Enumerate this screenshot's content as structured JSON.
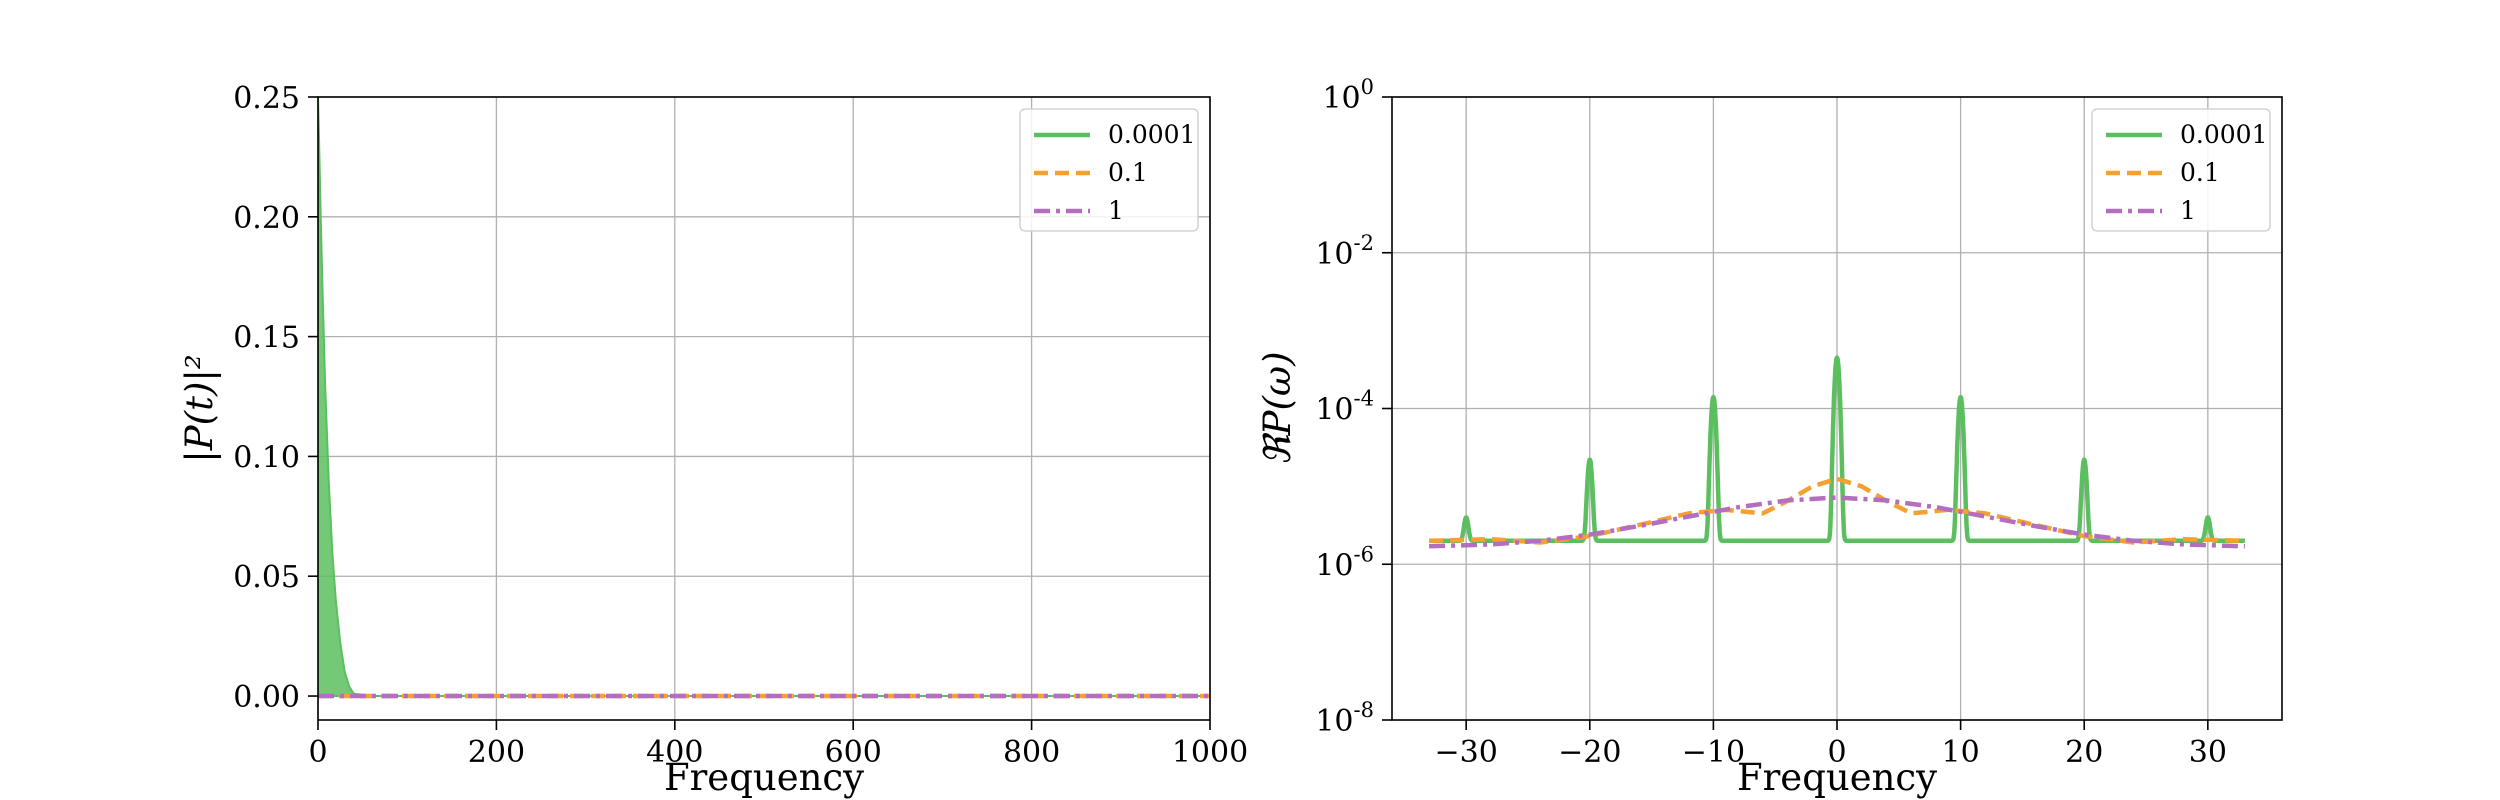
{
  "chart_data": [
    {
      "type": "line",
      "xlabel": "Frequency",
      "ylabel": "|P(t)|²",
      "xlim": [
        0,
        1000
      ],
      "ylim": [
        -0.01,
        0.25
      ],
      "xticks": [
        0,
        200,
        400,
        600,
        800,
        1000
      ],
      "xtick_labels": [
        "0",
        "200",
        "400",
        "600",
        "800",
        "1000"
      ],
      "yticks": [
        0.0,
        0.05,
        0.1,
        0.15,
        0.2,
        0.25
      ],
      "ytick_labels": [
        "0.00",
        "0.05",
        "0.10",
        "0.15",
        "0.20",
        "0.25"
      ],
      "grid": true,
      "legend": "top-right",
      "series": [
        {
          "name": "0.0001",
          "color": "#5cbf5f",
          "dash": "solid",
          "x": [
            0,
            1,
            3,
            5,
            8,
            12,
            16,
            20,
            25,
            30,
            35,
            40,
            60,
            100,
            200,
            400,
            600,
            800,
            1000
          ],
          "y": [
            0.25,
            0.235,
            0.2,
            0.17,
            0.13,
            0.09,
            0.06,
            0.04,
            0.022,
            0.01,
            0.004,
            0.001,
            0.0,
            0.0,
            0.0,
            0.0,
            0.0,
            0.0,
            0.0
          ]
        },
        {
          "name": "0.1",
          "color": "#f5a031",
          "dash": "dashed",
          "x": [
            0,
            1000
          ],
          "y": [
            0.0,
            0.0
          ]
        },
        {
          "name": "1",
          "color": "#b46ebf",
          "dash": "dashdot",
          "x": [
            0,
            1000
          ],
          "y": [
            0.0,
            0.0
          ]
        }
      ]
    },
    {
      "type": "line",
      "xlabel": "Frequency",
      "ylabel": "ℜP(ω)",
      "xlim": [
        -36,
        36
      ],
      "ylim": [
        1e-08,
        1
      ],
      "yscale": "log",
      "xticks": [
        -30,
        -20,
        -10,
        0,
        10,
        20,
        30
      ],
      "xtick_labels": [
        "−30",
        "−20",
        "−10",
        "0",
        "10",
        "20",
        "30"
      ],
      "yticks": [
        1e-08,
        1e-06,
        0.0001,
        0.01,
        1
      ],
      "ytick_labels": [
        {
          "base": "10",
          "exp": "-8"
        },
        {
          "base": "10",
          "exp": "-6"
        },
        {
          "base": "10",
          "exp": "-4"
        },
        {
          "base": "10",
          "exp": "-2"
        },
        {
          "base": "10",
          "exp": "0"
        }
      ],
      "grid": true,
      "legend": "top-right",
      "series": [
        {
          "name": "0.0001",
          "color": "#5cbf5f",
          "dash": "solid",
          "baseline": 2e-06,
          "x_range": [
            -33,
            33
          ],
          "peaks": [
            {
              "x": -30,
              "y": 4e-06
            },
            {
              "x": -20,
              "y": 2.2e-05
            },
            {
              "x": -10,
              "y": 0.00014
            },
            {
              "x": 0,
              "y": 0.00045
            },
            {
              "x": 10,
              "y": 0.00014
            },
            {
              "x": 20,
              "y": 2.2e-05
            },
            {
              "x": 30,
              "y": 4e-06
            }
          ]
        },
        {
          "name": "0.1",
          "color": "#f5a031",
          "dash": "dashed",
          "x": [
            -33,
            -28,
            -24,
            -20,
            -16,
            -12,
            -9,
            -6,
            -4,
            -2,
            0,
            2,
            4,
            6,
            9,
            12,
            16,
            20,
            24,
            28,
            33
          ],
          "y": [
            2e-06,
            2.1e-06,
            1.9e-06,
            2.3e-06,
            3.2e-06,
            4.5e-06,
            5e-06,
            4.5e-06,
            6.5e-06,
            1e-05,
            1.25e-05,
            1e-05,
            6.5e-06,
            4.5e-06,
            5e-06,
            4.5e-06,
            3.2e-06,
            2.3e-06,
            1.9e-06,
            2.1e-06,
            2e-06
          ]
        },
        {
          "name": "1",
          "color": "#b46ebf",
          "dash": "dashdot",
          "x": [
            -33,
            -28,
            -24,
            -20,
            -16,
            -12,
            -8,
            -4,
            0,
            4,
            8,
            12,
            16,
            20,
            24,
            28,
            33
          ],
          "y": [
            1.7e-06,
            1.8e-06,
            2e-06,
            2.4e-06,
            3.1e-06,
            4.1e-06,
            5.4e-06,
            6.6e-06,
            7.2e-06,
            6.6e-06,
            5.4e-06,
            4.1e-06,
            3.1e-06,
            2.4e-06,
            2e-06,
            1.8e-06,
            1.7e-06
          ]
        }
      ]
    }
  ]
}
